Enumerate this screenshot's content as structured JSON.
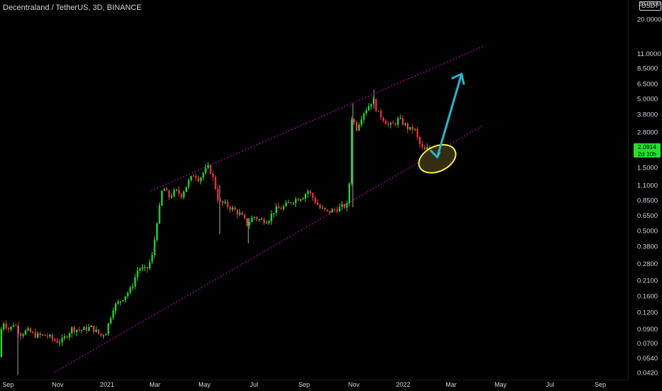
{
  "header": {
    "title": "Decentraland / TetherUS, 3D, BINANCE",
    "unit_badge": "USDT",
    "top_value": "28.0000"
  },
  "last_price": {
    "value": "2.0914",
    "countdown": "2d 10h"
  },
  "colors": {
    "background": "#000000",
    "up": "#26e02f",
    "down": "#f23645",
    "channel": "#d500d5",
    "arrow": "#26b5cf",
    "ellipse": "#f5f04a",
    "ellipse_fill": "#3a3212",
    "axis_text": "#d1d4dc"
  },
  "chart_data": {
    "type": "candlestick",
    "title": "Decentraland / TetherUS, 3D, BINANCE",
    "y_scale": "log",
    "ylim": [
      0.037,
      28
    ],
    "xlim": [
      "2020-08-22",
      "2022-10-05"
    ],
    "y_ticks": [
      20.0,
      11.0,
      8.5,
      6.5,
      5.0,
      3.8,
      2.8,
      2.0914,
      1.5,
      1.1,
      0.85,
      0.65,
      0.5,
      0.38,
      0.28,
      0.21,
      0.16,
      0.12,
      0.09,
      0.07,
      0.054,
      0.042
    ],
    "y_tick_labels": [
      "20.0000",
      "11.0000",
      "8.5000",
      "6.5000",
      "5.0000",
      "3.8000",
      "2.8000",
      "2.0914",
      "1.5000",
      "1.1000",
      "0.8500",
      "0.6500",
      "0.5000",
      "0.3800",
      "0.2800",
      "0.2100",
      "0.1600",
      "0.1200",
      "0.0900",
      "0.0700",
      "0.0540",
      "0.0420"
    ],
    "x_ticks": [
      {
        "label": "Sep",
        "date": "2020-09-01"
      },
      {
        "label": "Nov",
        "date": "2020-11-01"
      },
      {
        "label": "2021",
        "date": "2021-01-01"
      },
      {
        "label": "Mar",
        "date": "2021-03-01"
      },
      {
        "label": "May",
        "date": "2021-05-01"
      },
      {
        "label": "Jul",
        "date": "2021-07-01"
      },
      {
        "label": "Sep",
        "date": "2021-09-01"
      },
      {
        "label": "Nov",
        "date": "2021-11-01"
      },
      {
        "label": "2022",
        "date": "2022-01-01"
      },
      {
        "label": "Mar",
        "date": "2022-03-01"
      },
      {
        "label": "May",
        "date": "2022-05-01"
      },
      {
        "label": "Jul",
        "date": "2022-07-01"
      },
      {
        "label": "Sep",
        "date": "2022-09-01"
      }
    ],
    "price_path": [
      [
        "2020-08-22",
        0.055
      ],
      [
        "2020-08-26",
        0.105
      ],
      [
        "2020-09-04",
        0.088
      ],
      [
        "2020-09-10",
        0.1
      ],
      [
        "2020-09-17",
        0.082
      ],
      [
        "2020-09-26",
        0.087
      ],
      [
        "2020-10-07",
        0.08
      ],
      [
        "2020-10-20",
        0.08
      ],
      [
        "2020-11-01",
        0.072
      ],
      [
        "2020-11-08",
        0.073
      ],
      [
        "2020-11-20",
        0.09
      ],
      [
        "2020-12-01",
        0.088
      ],
      [
        "2020-12-14",
        0.092
      ],
      [
        "2020-12-26",
        0.08
      ],
      [
        "2021-01-01",
        0.085
      ],
      [
        "2021-01-10",
        0.13
      ],
      [
        "2021-01-20",
        0.15
      ],
      [
        "2021-02-01",
        0.18
      ],
      [
        "2021-02-10",
        0.26
      ],
      [
        "2021-02-20",
        0.25
      ],
      [
        "2021-02-28",
        0.33
      ],
      [
        "2021-03-04",
        0.55
      ],
      [
        "2021-03-08",
        0.74
      ],
      [
        "2021-03-12",
        1.08
      ],
      [
        "2021-03-20",
        0.9
      ],
      [
        "2021-03-28",
        1.0
      ],
      [
        "2021-04-04",
        0.93
      ],
      [
        "2021-04-12",
        1.15
      ],
      [
        "2021-04-20",
        1.35
      ],
      [
        "2021-04-26",
        1.22
      ],
      [
        "2021-05-02",
        1.4
      ],
      [
        "2021-05-08",
        1.52
      ],
      [
        "2021-05-14",
        1.2
      ],
      [
        "2021-05-20",
        0.82
      ],
      [
        "2021-05-28",
        0.79
      ],
      [
        "2021-06-06",
        0.73
      ],
      [
        "2021-06-16",
        0.66
      ],
      [
        "2021-06-24",
        0.56
      ],
      [
        "2021-07-02",
        0.64
      ],
      [
        "2021-07-10",
        0.6
      ],
      [
        "2021-07-20",
        0.6
      ],
      [
        "2021-07-28",
        0.72
      ],
      [
        "2021-08-06",
        0.74
      ],
      [
        "2021-08-16",
        0.82
      ],
      [
        "2021-08-24",
        0.87
      ],
      [
        "2021-09-01",
        0.91
      ],
      [
        "2021-09-07",
        1.0
      ],
      [
        "2021-09-14",
        0.87
      ],
      [
        "2021-09-22",
        0.74
      ],
      [
        "2021-10-01",
        0.69
      ],
      [
        "2021-10-10",
        0.72
      ],
      [
        "2021-10-20",
        0.76
      ],
      [
        "2021-10-27",
        0.78
      ],
      [
        "2021-10-31",
        3.6
      ],
      [
        "2021-11-06",
        3.0
      ],
      [
        "2021-11-14",
        3.9
      ],
      [
        "2021-11-22",
        4.5
      ],
      [
        "2021-11-26",
        5.0
      ],
      [
        "2021-12-02",
        3.9
      ],
      [
        "2021-12-08",
        3.6
      ],
      [
        "2021-12-16",
        3.1
      ],
      [
        "2021-12-22",
        3.2
      ],
      [
        "2021-12-28",
        3.5
      ],
      [
        "2022-01-04",
        3.2
      ],
      [
        "2022-01-10",
        2.9
      ],
      [
        "2022-01-16",
        3.0
      ],
      [
        "2022-01-22",
        2.3
      ],
      [
        "2022-01-28",
        2.0
      ],
      [
        "2022-02-01",
        2.09
      ]
    ],
    "spikes": [
      {
        "date": "2020-09-13",
        "low": 0.04,
        "high": 0.095
      },
      {
        "date": "2021-05-20",
        "low": 0.47,
        "high": 1.1
      },
      {
        "date": "2021-06-24",
        "low": 0.4,
        "high": 0.62
      },
      {
        "date": "2021-10-31",
        "low": 0.75,
        "high": 4.6
      },
      {
        "date": "2021-11-26",
        "low": 4.2,
        "high": 5.9
      }
    ],
    "annotations": {
      "upper_channel": [
        [
          "2021-02-24",
          1.0
        ],
        [
          "2022-04-10",
          12.5
        ]
      ],
      "lower_channel": [
        [
          "2020-10-28",
          0.042
        ],
        [
          "2022-04-10",
          3.15
        ]
      ],
      "ellipse": {
        "center": [
          "2022-02-12",
          1.75
        ],
        "rx_days": 24,
        "ratio_y": 1.55,
        "angle": -25
      },
      "arrow": {
        "from": [
          "2022-02-12",
          1.8
        ],
        "to": [
          "2022-03-14",
          7.7
        ]
      }
    }
  }
}
